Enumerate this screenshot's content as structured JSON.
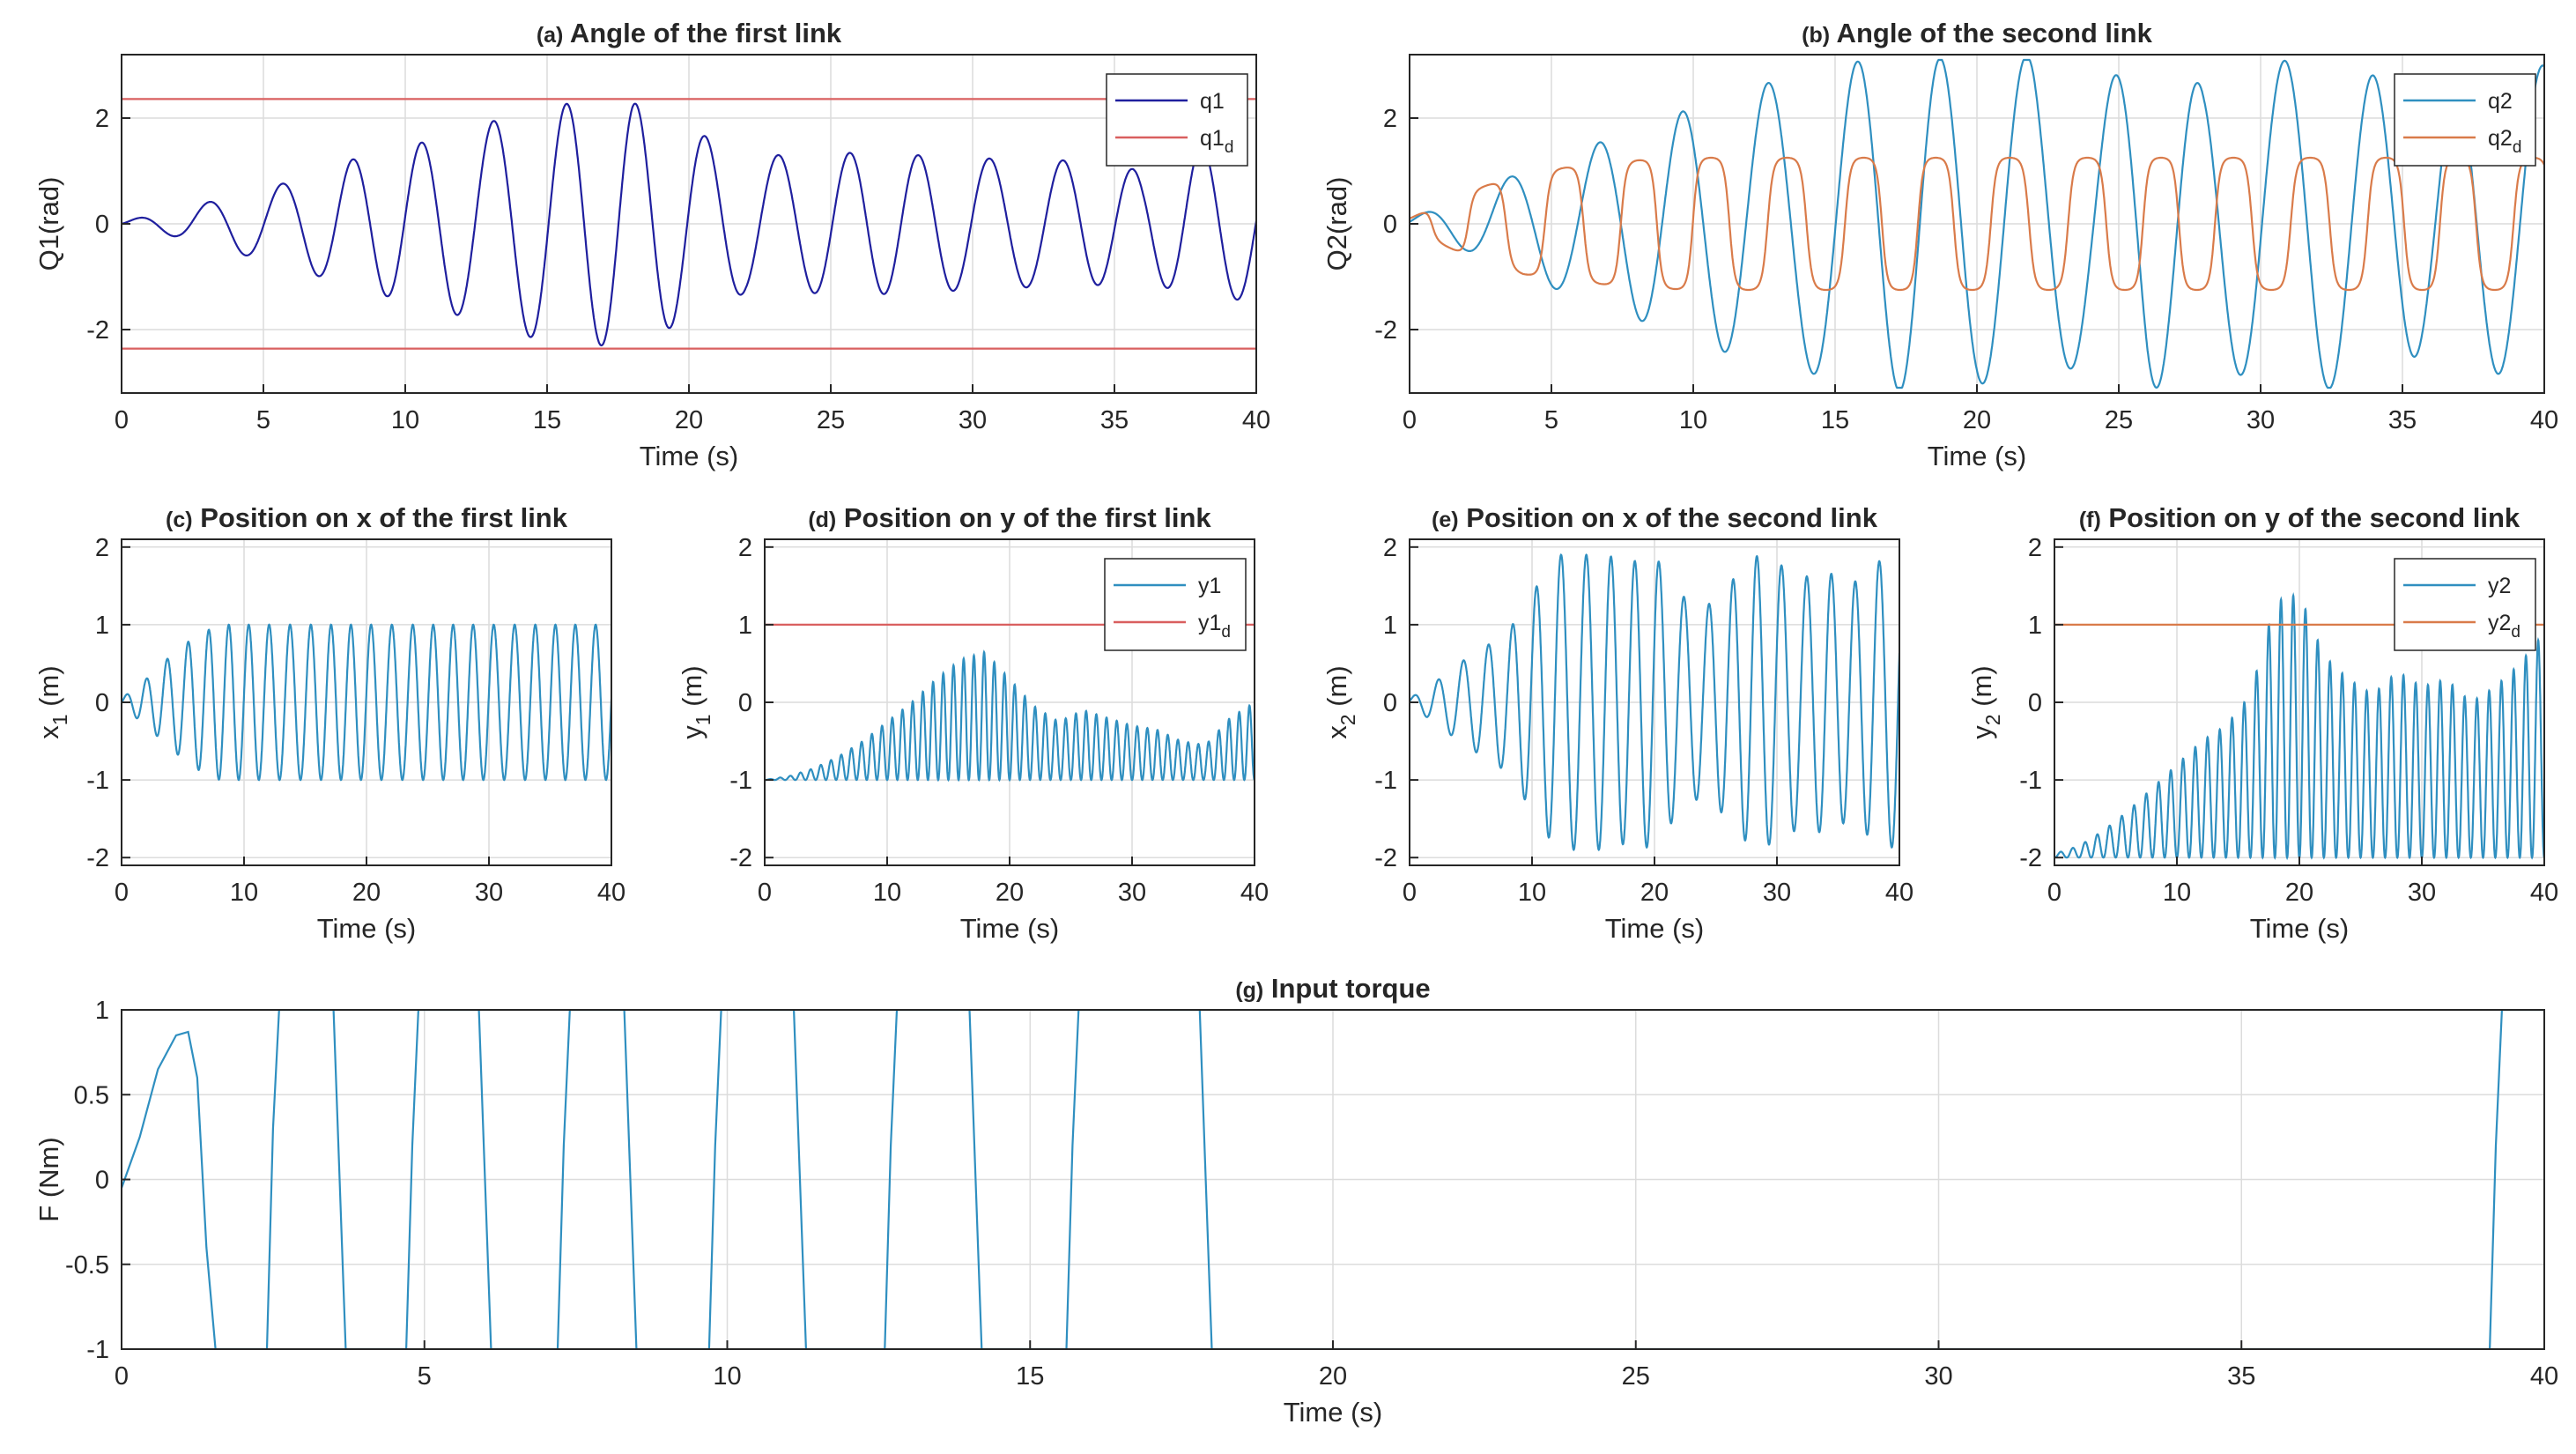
{
  "colors": {
    "q1": "#1f1f9e",
    "ref": "#d95f5f",
    "ref_orange": "#d97b4a",
    "signal": "#2f8fc0",
    "axis": "#262626",
    "grid": "#dcdcdc"
  },
  "chart_data": [
    {
      "id": "a",
      "type": "line",
      "title_tag": "(a)",
      "title": "Angle of the first link",
      "xlabel": "Time (s)",
      "ylabel": "Q1(rad)",
      "xlim": [
        0,
        40
      ],
      "ylim": [
        -3.2,
        3.2
      ],
      "xticks": [
        0,
        5,
        10,
        15,
        20,
        25,
        30,
        35,
        40
      ],
      "yticks": [
        -2,
        0,
        2
      ],
      "legend_position": "top-right",
      "series": [
        {
          "name": "q1",
          "legend_main": "q1",
          "legend_sub": "",
          "color_key": "q1",
          "kind": "sine",
          "amps": [
            0.05,
            0.25,
            0.55,
            0.8,
            1.2,
            1.45,
            1.75,
            2.1,
            2.3,
            2.3,
            1.8,
            1.3,
            1.3,
            1.35,
            1.3,
            1.25,
            1.2,
            1.2,
            1.0,
            1.5,
            1.4
          ],
          "freq": 0.4,
          "phase": 0,
          "offset": 0
        },
        {
          "name": "q1_d upper",
          "legend_main": "q1",
          "legend_sub": "d",
          "color_key": "ref",
          "kind": "const",
          "value": 2.36
        },
        {
          "name": "q1_d lower",
          "legend_main": "",
          "legend_sub": "",
          "color_key": "ref",
          "kind": "const",
          "value": -2.36
        }
      ]
    },
    {
      "id": "b",
      "type": "line",
      "title_tag": "(b)",
      "title": "Angle of the second link",
      "xlabel": "Time (s)",
      "ylabel": "Q2(rad)",
      "xlim": [
        0,
        40
      ],
      "ylim": [
        -3.2,
        3.2
      ],
      "xticks": [
        0,
        5,
        10,
        15,
        20,
        25,
        30,
        35,
        40
      ],
      "yticks": [
        -2,
        0,
        2
      ],
      "legend_position": "top-right",
      "series": [
        {
          "name": "q2",
          "legend_main": "q2",
          "legend_sub": "",
          "color_key": "signal",
          "kind": "sine",
          "amps": [
            0.1,
            0.5,
            1.0,
            1.4,
            1.8,
            2.2,
            2.6,
            2.8,
            3.1,
            3.2,
            3.0,
            3.2,
            2.5,
            3.2,
            2.6,
            3.0,
            3.2,
            2.8,
            2.4,
            2.8,
            3.0
          ],
          "freq": 0.33,
          "phase": 0.4,
          "offset": 0,
          "clip": 3.1
        },
        {
          "name": "q2_d",
          "legend_main": "q2",
          "legend_sub": "d",
          "color_key": "ref_orange",
          "kind": "sine",
          "amps": [
            0.1,
            0.6,
            0.95,
            1.1,
            1.2,
            1.25,
            1.25,
            1.25,
            1.25,
            1.25,
            1.25,
            1.25,
            1.25,
            1.25,
            1.25,
            1.25,
            1.25,
            1.25,
            1.25,
            1.25,
            1.25
          ],
          "freq": 0.38,
          "phase": 1.2,
          "offset": 0,
          "square": 2.2
        }
      ]
    },
    {
      "id": "c",
      "type": "line",
      "title_tag": "(c)",
      "title": "Position on x of the first link",
      "xlabel": "Time (s)",
      "ylabel": "x",
      "ylabel_sub": "1",
      "ylabel_unit": " (m)",
      "xlim": [
        0,
        40
      ],
      "ylim": [
        -2.1,
        2.1
      ],
      "xticks": [
        0,
        10,
        20,
        30,
        40
      ],
      "yticks": [
        -2,
        -1,
        0,
        1,
        2
      ],
      "legend_position": "none",
      "series": [
        {
          "name": "x1",
          "legend_main": "",
          "legend_sub": "",
          "color_key": "signal",
          "kind": "sine",
          "amps": [
            0.05,
            0.3,
            0.6,
            0.85,
            1.0,
            1.0,
            1.0,
            1.0,
            1.0,
            1.0,
            1.0,
            1.0,
            1.0,
            1.0,
            1.0,
            1.0,
            1.0,
            1.0,
            1.0,
            1.0,
            1.0
          ],
          "freq": 0.6,
          "phase": 0,
          "offset": 0,
          "clip": 1.0
        }
      ]
    },
    {
      "id": "d",
      "type": "line",
      "title_tag": "(d)",
      "title": "Position on y of the first link",
      "xlabel": "Time (s)",
      "ylabel": "y",
      "ylabel_sub": "1",
      "ylabel_unit": " (m)",
      "xlim": [
        0,
        40
      ],
      "ylim": [
        -2.1,
        2.1
      ],
      "xticks": [
        0,
        10,
        20,
        30,
        40
      ],
      "yticks": [
        -2,
        -1,
        0,
        1,
        2
      ],
      "legend_position": "top-right",
      "series": [
        {
          "name": "y1",
          "legend_main": "y1",
          "legend_sub": "",
          "color_key": "signal",
          "kind": "rect",
          "base": -1,
          "amps": [
            0.0,
            0.05,
            0.15,
            0.3,
            0.5,
            0.75,
            1.0,
            1.3,
            1.55,
            1.65,
            1.3,
            0.95,
            0.75,
            0.9,
            0.8,
            0.7,
            0.65,
            0.5,
            0.45,
            0.8,
            1.0
          ],
          "freq": 1.2,
          "phase": 0
        },
        {
          "name": "y1_d",
          "legend_main": "y1",
          "legend_sub": "d",
          "color_key": "ref",
          "kind": "const",
          "value": 1.0
        }
      ]
    },
    {
      "id": "e",
      "type": "line",
      "title_tag": "(e)",
      "title": "Position on x of the second link",
      "xlabel": "Time (s)",
      "ylabel": "x",
      "ylabel_sub": "2",
      "ylabel_unit": " (m)",
      "xlim": [
        0,
        40
      ],
      "ylim": [
        -2.1,
        2.1
      ],
      "xticks": [
        0,
        10,
        20,
        30,
        40
      ],
      "yticks": [
        -2,
        -1,
        0,
        1,
        2
      ],
      "legend_position": "none",
      "series": [
        {
          "name": "x2",
          "legend_main": "",
          "legend_sub": "",
          "color_key": "signal",
          "kind": "sine",
          "amps": [
            0.05,
            0.25,
            0.5,
            0.7,
            0.9,
            1.4,
            1.9,
            1.9,
            1.9,
            1.8,
            1.9,
            1.4,
            1.2,
            1.5,
            1.9,
            1.8,
            1.6,
            1.7,
            1.5,
            1.8,
            1.9
          ],
          "freq": 0.5,
          "phase": 0.3,
          "offset": 0,
          "clip": 1.95
        }
      ]
    },
    {
      "id": "f",
      "type": "line",
      "title_tag": "(f)",
      "title": "Position on y of the second link",
      "xlabel": "Time (s)",
      "ylabel": "y",
      "ylabel_sub": "2",
      "ylabel_unit": " (m)",
      "xlim": [
        0,
        40
      ],
      "ylim": [
        -2.1,
        2.1
      ],
      "xticks": [
        0,
        10,
        20,
        30,
        40
      ],
      "yticks": [
        -2,
        -1,
        0,
        1,
        2
      ],
      "legend_position": "top-right",
      "series": [
        {
          "name": "y2",
          "legend_main": "y2",
          "legend_sub": "",
          "color_key": "signal",
          "kind": "rect",
          "base": -2,
          "amps": [
            0.05,
            0.15,
            0.35,
            0.6,
            0.9,
            1.2,
            1.5,
            1.7,
            2.1,
            3.3,
            3.4,
            2.6,
            2.3,
            2.1,
            2.4,
            2.2,
            2.3,
            2.0,
            2.2,
            2.5,
            2.9
          ],
          "freq": 1.0,
          "phase": 0
        },
        {
          "name": "y2_d",
          "legend_main": "y2",
          "legend_sub": "d",
          "color_key": "ref_orange",
          "kind": "const",
          "value": 1.0
        }
      ]
    },
    {
      "id": "g",
      "type": "line",
      "title_tag": "(g)",
      "title": "Input torque",
      "xlabel": "Time (s)",
      "ylabel": "F (Nm)",
      "xlim": [
        0,
        40
      ],
      "ylim": [
        -1,
        1
      ],
      "xticks": [
        0,
        5,
        10,
        15,
        20,
        25,
        30,
        35,
        40
      ],
      "yticks": [
        -1,
        -0.5,
        0,
        0.5,
        1
      ],
      "legend_position": "none",
      "series": [
        {
          "name": "F",
          "legend_main": "",
          "legend_sub": "",
          "color_key": "signal",
          "kind": "points",
          "x": [
            0,
            0.3,
            0.6,
            0.9,
            1.1,
            1.25,
            1.4,
            1.55,
            2.4,
            2.5,
            2.6,
            3.5,
            3.6,
            3.7,
            4.7,
            4.8,
            4.9,
            5.9,
            6.0,
            6.1,
            7.2,
            7.3,
            7.4,
            8.3,
            8.4,
            8.5,
            9.7,
            9.8,
            9.9,
            11.1,
            11.2,
            11.3,
            12.6,
            12.7,
            12.8,
            14.0,
            14.1,
            14.2,
            15.6,
            15.7,
            15.8,
            17.8,
            17.9,
            18.0,
            39.1,
            39.2,
            39.3,
            40
          ],
          "y": [
            -0.05,
            0.25,
            0.65,
            0.85,
            0.87,
            0.6,
            -0.4,
            -1,
            -1,
            0.3,
            1,
            1,
            0,
            -1,
            -1,
            0.2,
            1,
            1,
            0,
            -1,
            -1,
            0.2,
            1,
            1,
            0,
            -1,
            -1,
            0.2,
            1,
            1,
            0,
            -1,
            -1,
            0.2,
            1,
            1,
            0,
            -1,
            -1,
            0.2,
            1,
            1,
            0,
            -1,
            -1,
            0.2,
            1,
            1
          ]
        }
      ]
    }
  ]
}
